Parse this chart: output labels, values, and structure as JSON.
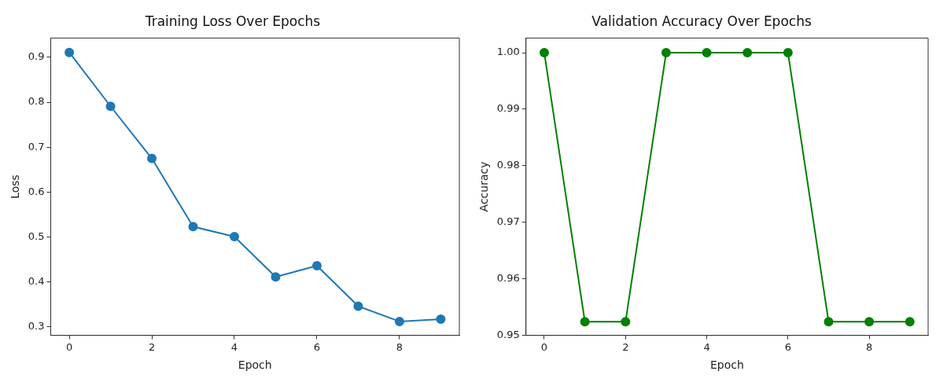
{
  "chart_data": [
    {
      "type": "line",
      "title": "Training Loss Over Epochs",
      "xlabel": "Epoch",
      "ylabel": "Loss",
      "x": [
        0,
        1,
        2,
        3,
        4,
        5,
        6,
        7,
        8,
        9
      ],
      "series": [
        {
          "color": "#1f77b4",
          "values": [
            0.911,
            0.791,
            0.675,
            0.523,
            0.501,
            0.411,
            0.436,
            0.346,
            0.312,
            0.317
          ]
        }
      ],
      "xlim": [
        -0.45,
        9.45
      ],
      "xticks": [
        0,
        2,
        4,
        6,
        8
      ],
      "ylim": [
        0.281,
        0.943
      ],
      "yticks": [
        0.3,
        0.4,
        0.5,
        0.6,
        0.7,
        0.8,
        0.9
      ],
      "grid": false,
      "legend": false,
      "marker": "circle",
      "line_style": "solid"
    },
    {
      "type": "line",
      "title": "Validation Accuracy Over Epochs",
      "xlabel": "Epoch",
      "ylabel": "Accuracy",
      "x": [
        0,
        1,
        2,
        3,
        4,
        5,
        6,
        7,
        8,
        9
      ],
      "series": [
        {
          "color": "#008000",
          "values": [
            1.0,
            0.9524,
            0.9524,
            1.0,
            1.0,
            1.0,
            1.0,
            0.9524,
            0.9524,
            0.9524
          ]
        }
      ],
      "xlim": [
        -0.45,
        9.45
      ],
      "xticks": [
        0,
        2,
        4,
        6,
        8
      ],
      "ylim": [
        0.95,
        1.0026
      ],
      "yticks": [
        {
          "value": 0.95,
          "label": "0.95"
        },
        {
          "value": 0.96,
          "label": "0.96"
        },
        {
          "value": 0.97,
          "label": "0.97"
        },
        {
          "value": 0.98,
          "label": "0.98"
        },
        {
          "value": 0.99,
          "label": "0.99"
        },
        {
          "value": 1.0,
          "label": "1.00"
        }
      ],
      "grid": false,
      "legend": false,
      "marker": "circle",
      "line_style": "solid"
    }
  ]
}
